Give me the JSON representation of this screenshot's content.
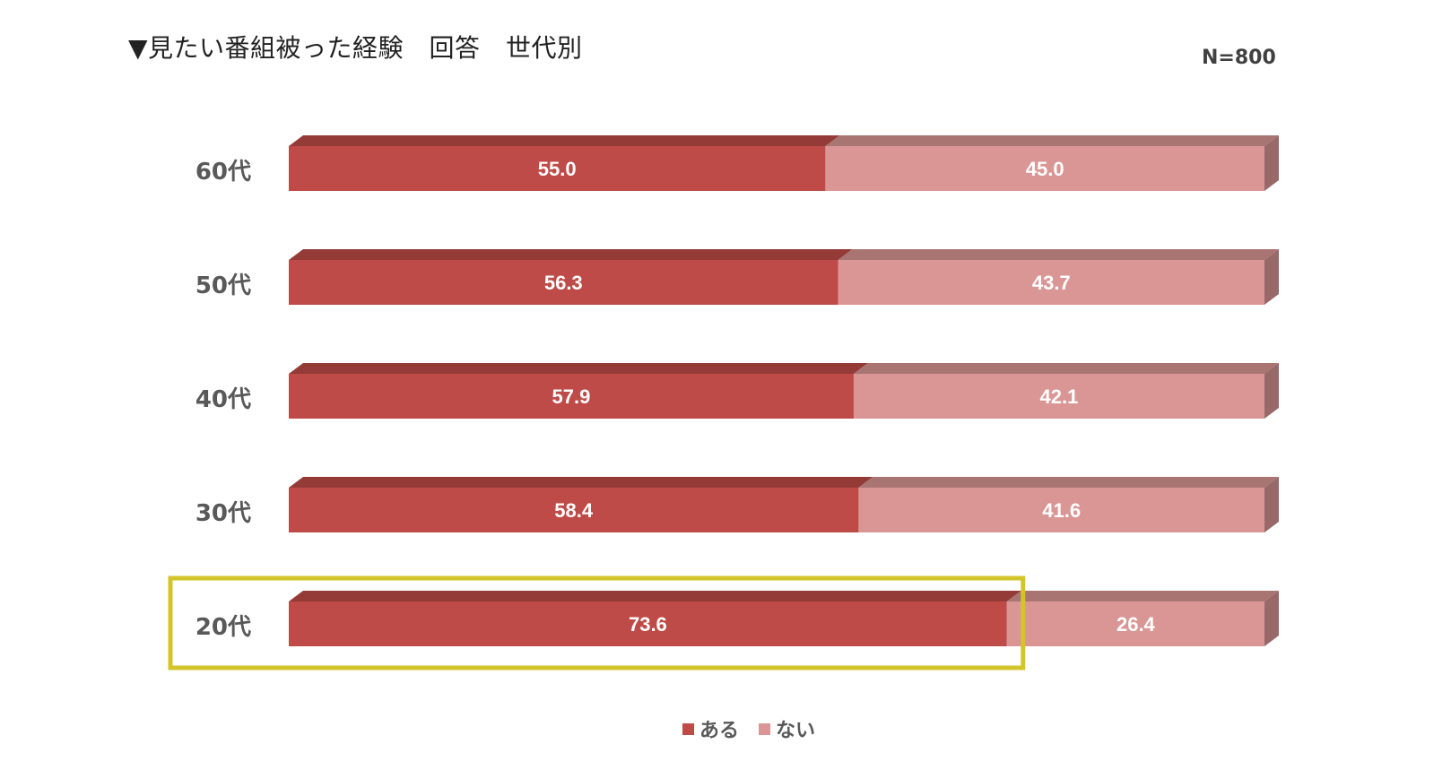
{
  "title": "▼見たい番組被った経験　回答　世代別",
  "sample_size": "N=800",
  "highlight_color": "#D4C42C",
  "chart_data": {
    "type": "bar",
    "orientation": "horizontal",
    "stacked": true,
    "percent_stacked": true,
    "categories": [
      "60代",
      "50代",
      "40代",
      "30代",
      "20代"
    ],
    "series": [
      {
        "name": "ある",
        "values": [
          55.0,
          56.3,
          57.9,
          58.4,
          73.6
        ],
        "labels": [
          "55.0",
          "56.3",
          "57.9",
          "58.4",
          "73.6"
        ],
        "color": "#BE4B48"
      },
      {
        "name": "ない",
        "values": [
          45.0,
          43.7,
          42.1,
          41.6,
          26.4
        ],
        "labels": [
          "45.0",
          "43.7",
          "42.1",
          "41.6",
          "26.4"
        ],
        "color": "#D99694"
      }
    ],
    "xlim": [
      0,
      100
    ],
    "highlighted_category": "20代",
    "legend_position": "bottom",
    "grid": false
  }
}
